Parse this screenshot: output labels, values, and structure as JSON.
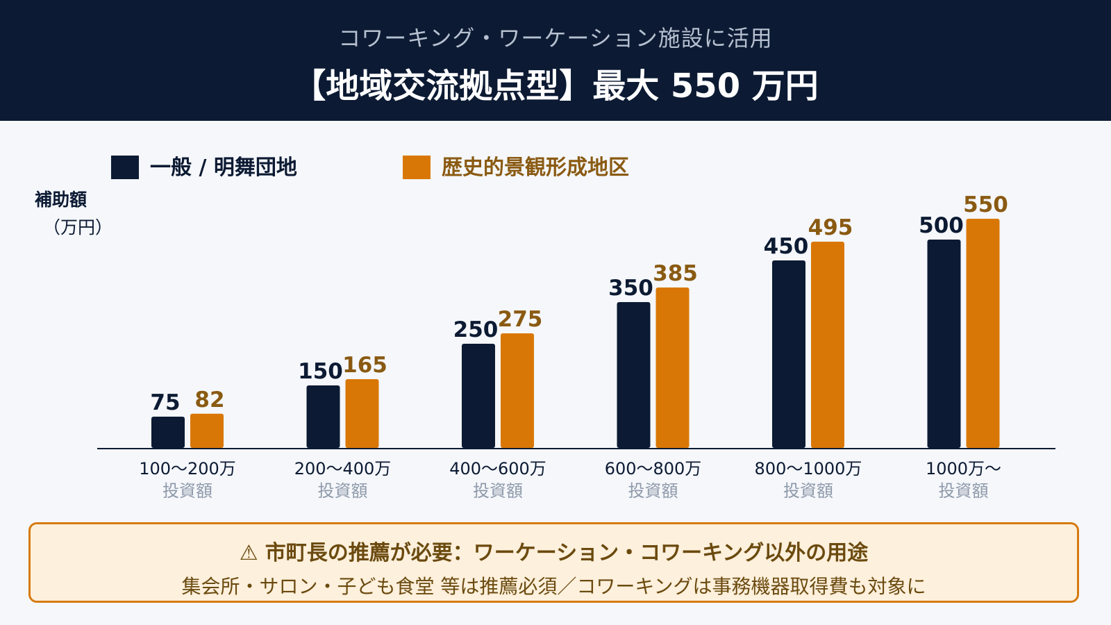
{
  "header": {
    "subtitle": "コワーキング・ワーケーション施設に活用",
    "title": "【地域交流拠点型】最大 550 万円"
  },
  "colors": {
    "header_bg": "#0c1a33",
    "series_general": "#0c1a33",
    "series_historic": "#d97706",
    "historic_label": "#8a5a12",
    "axis_label_sub": "#8e99aa",
    "note_border": "#d67a10",
    "note_bg": "#fdf0dc",
    "note_text": "#6b4a0f"
  },
  "chart_data": {
    "type": "bar",
    "ylabel": "補助額",
    "yunit": "（万円）",
    "ylim": [
      0,
      560
    ],
    "grid": false,
    "legend_position": "top-left",
    "categories": [
      "100〜200万",
      "200〜400万",
      "400〜600万",
      "600〜800万",
      "800〜1000万",
      "1000万〜"
    ],
    "category_sublabel": "投資額",
    "series": [
      {
        "name": "一般 / 明舞団地",
        "values": [
          75,
          150,
          250,
          350,
          450,
          500
        ]
      },
      {
        "name": "歴史的景観形成地区",
        "values": [
          82,
          165,
          275,
          385,
          495,
          550
        ]
      }
    ]
  },
  "note": {
    "icon": "warning-icon",
    "icon_glyph": "⚠",
    "title": "市町長の推薦が必要：ワーケーション・コワーキング以外の用途",
    "body": "集会所・サロン・子ども食堂 等は推薦必須／コワーキングは事務機器取得費も対象に"
  }
}
